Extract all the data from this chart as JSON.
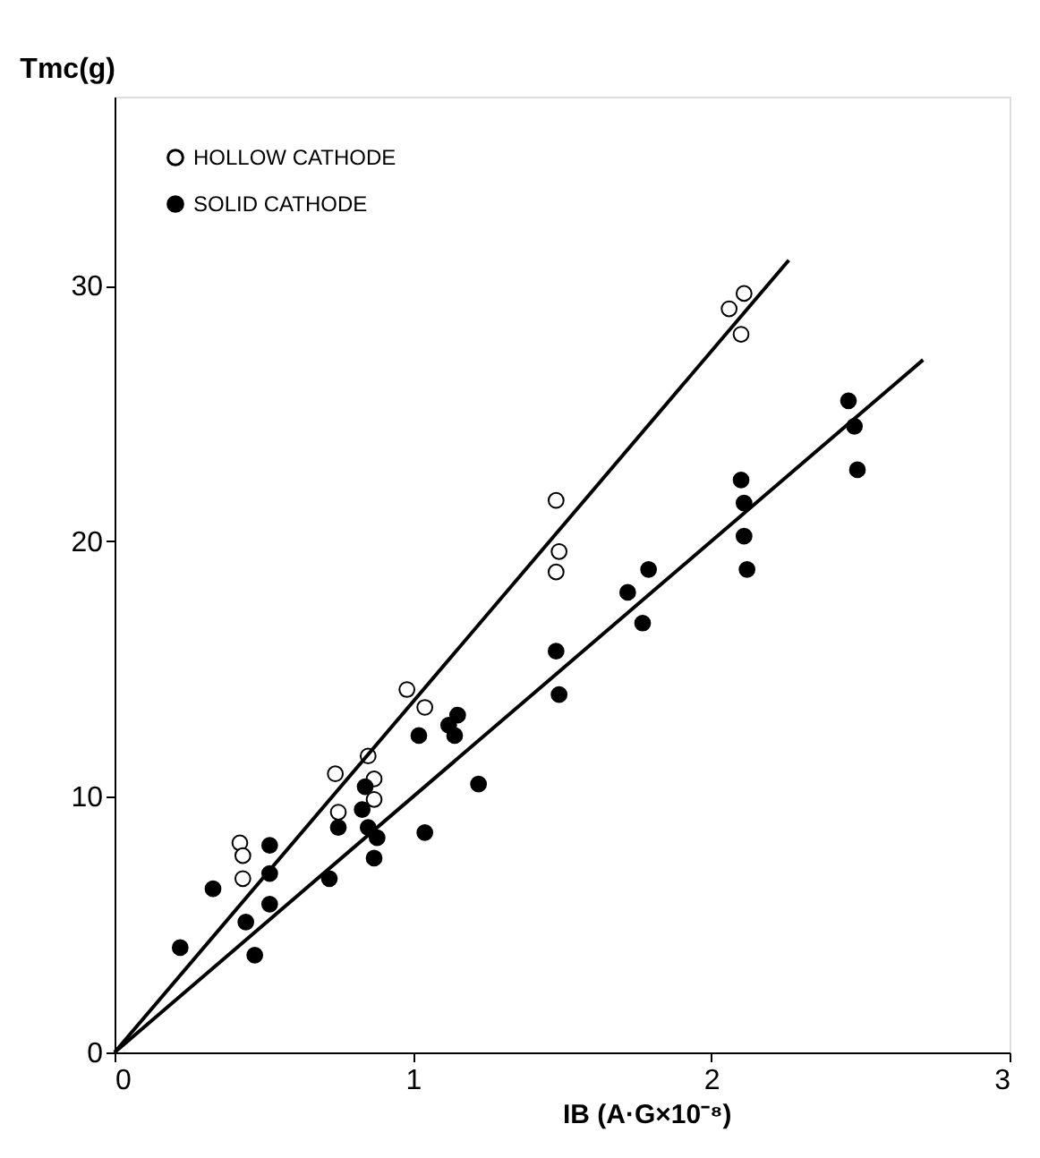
{
  "chart_data": {
    "type": "scatter",
    "xlabel": "IB   (A·G×10⁻⁸)",
    "ylabel": "Tmc(g)",
    "xlim": [
      0,
      3
    ],
    "ylim": [
      0,
      37.4
    ],
    "xticks": [
      0,
      1,
      2,
      3
    ],
    "yticks": [
      0,
      10,
      20,
      30
    ],
    "grid": false,
    "legend": "top left",
    "marker": "circle",
    "series": [
      {
        "name": "HOLLOW CATHODE",
        "color": "#ffffff",
        "x": [
          1.48,
          1.49,
          1.48,
          0.98,
          1.04,
          2.11,
          2.06,
          2.1,
          0.85,
          0.74,
          0.87,
          0.87,
          0.75,
          0.42,
          0.43,
          0.43
        ],
        "values": [
          21.6,
          19.6,
          18.8,
          14.2,
          13.5,
          29.7,
          29.1,
          28.1,
          11.6,
          10.9,
          10.7,
          9.9,
          9.4,
          8.2,
          7.7,
          6.8
        ]
      },
      {
        "name": "SOLID CATHODE",
        "color": "#000000",
        "x": [
          1.15,
          1.12,
          1.14,
          1.02,
          1.22,
          0.84,
          0.83,
          0.75,
          0.85,
          0.88,
          1.04,
          0.87,
          0.52,
          0.52,
          0.33,
          0.72,
          0.52,
          0.44,
          0.22,
          0.47,
          1.48,
          1.49,
          2.46,
          2.48,
          2.49,
          2.1,
          2.11,
          2.11,
          2.12,
          1.79,
          1.72,
          1.77
        ],
        "values": [
          13.2,
          12.8,
          12.4,
          12.4,
          10.5,
          10.4,
          9.5,
          8.8,
          8.8,
          8.4,
          8.6,
          7.6,
          8.1,
          7.0,
          6.4,
          6.8,
          5.8,
          5.1,
          4.1,
          3.8,
          15.7,
          14.0,
          25.5,
          24.5,
          22.8,
          22.4,
          21.5,
          20.2,
          18.9,
          18.9,
          18.0,
          16.8
        ]
      },
      {
        "type": "line",
        "marker": "none",
        "color": "#000000",
        "x": [
          0,
          2.26
        ],
        "values": [
          0,
          31.0
        ]
      },
      {
        "type": "line",
        "marker": "none",
        "color": "#000000",
        "x": [
          0,
          2.71
        ],
        "values": [
          0,
          27.1
        ]
      }
    ]
  }
}
